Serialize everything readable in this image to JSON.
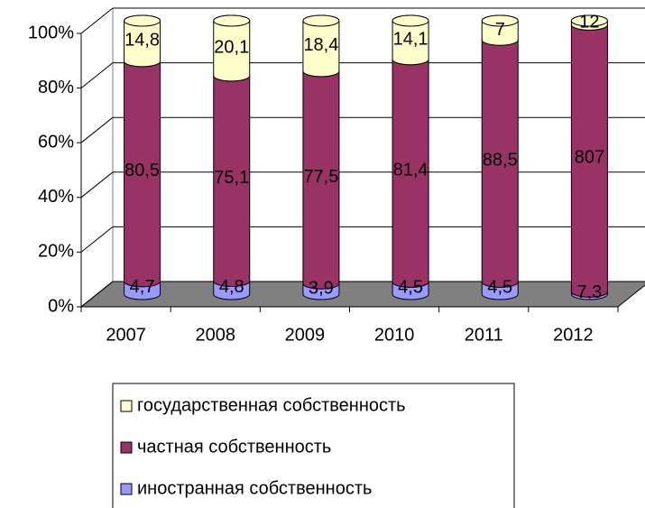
{
  "chart_data": {
    "type": "bar",
    "stacking": "percent",
    "categories": [
      "2007",
      "2008",
      "2009",
      "2010",
      "2011",
      "2012"
    ],
    "series": [
      {
        "name": "иностранная собственность",
        "color": "#9999ff",
        "values": [
          4.7,
          4.8,
          3.9,
          4.5,
          4.5,
          7.3
        ],
        "value_labels": [
          "4,7",
          "4,8",
          "3,9",
          "4,5",
          "4,5",
          "7,3"
        ]
      },
      {
        "name": "частная собственность",
        "color": "#993366",
        "values": [
          80.5,
          75.1,
          77.5,
          81.4,
          88.5,
          807
        ],
        "value_labels": [
          "80,5",
          "75,1",
          "77,5",
          "81,4",
          "88,5",
          "807"
        ]
      },
      {
        "name": "государственная собственность",
        "color": "#ffffcc",
        "values": [
          14.8,
          20.1,
          18.4,
          14.1,
          7,
          12
        ],
        "value_labels": [
          "14,8",
          "20,1",
          "18,4",
          "14,1",
          "7",
          "12"
        ]
      }
    ],
    "ylim": [
      0,
      100
    ],
    "yticks": [
      {
        "value": 0,
        "label": "0%"
      },
      {
        "value": 20,
        "label": "20%"
      },
      {
        "value": 40,
        "label": "40%"
      },
      {
        "value": 60,
        "label": "60%"
      },
      {
        "value": 80,
        "label": "80%"
      },
      {
        "value": 100,
        "label": "100%"
      }
    ],
    "grid": true,
    "legend": "bottom"
  }
}
